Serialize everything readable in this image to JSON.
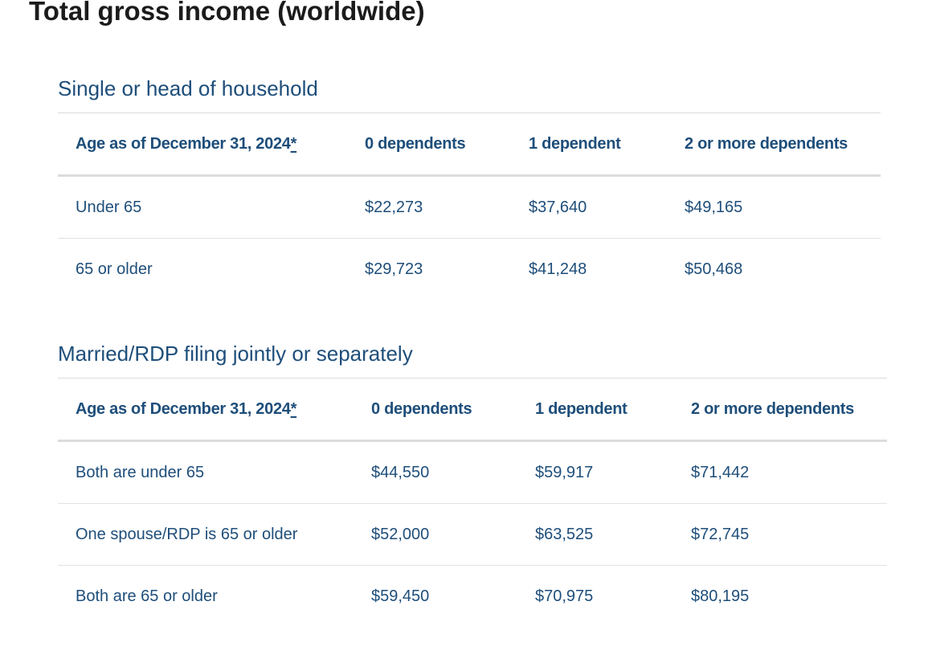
{
  "page_title": "Total gross income (worldwide)",
  "sections": [
    {
      "title": "Single or head of household",
      "headers": [
        "Age as of December 31, 2024",
        "0 dependents",
        "1 dependent",
        "2 or more dependents"
      ],
      "header_footnote": "*",
      "rows": [
        {
          "label": "Under 65",
          "values": [
            "$22,273",
            "$37,640",
            "$49,165"
          ]
        },
        {
          "label": "65 or older",
          "values": [
            "$29,723",
            "$41,248",
            "$50,468"
          ]
        }
      ]
    },
    {
      "title": "Married/RDP filing jointly or separately",
      "headers": [
        "Age as of December 31, 2024",
        "0 dependents",
        "1 dependent",
        "2 or more dependents"
      ],
      "header_footnote": "*",
      "rows": [
        {
          "label": "Both are under 65",
          "values": [
            "$44,550",
            "$59,917",
            "$71,442"
          ]
        },
        {
          "label": "One spouse/RDP is 65 or older",
          "values": [
            "$52,000",
            "$63,525",
            "$72,745"
          ]
        },
        {
          "label": "Both are 65 or older",
          "values": [
            "$59,450",
            "$70,975",
            "$80,195"
          ]
        }
      ]
    }
  ]
}
